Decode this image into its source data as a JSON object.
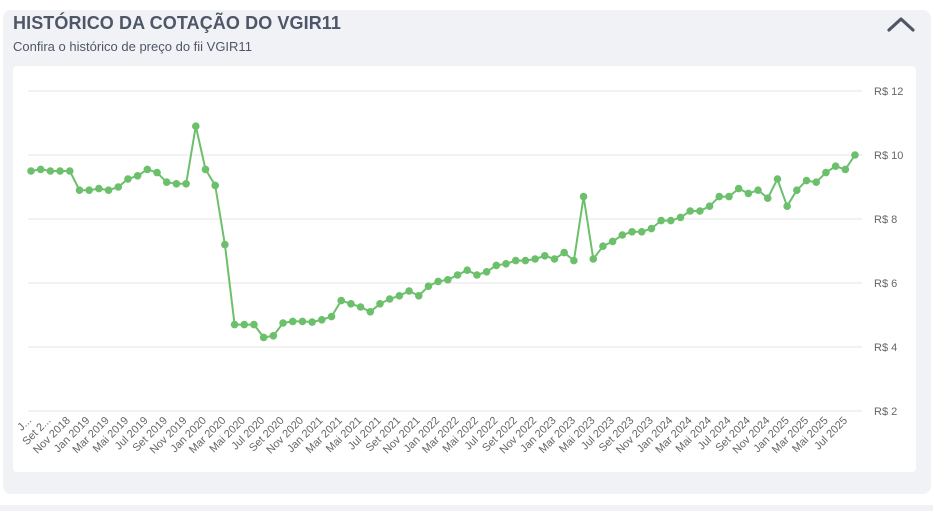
{
  "header": {
    "title": "HISTÓRICO DA COTAÇÃO DO VGIR11",
    "subtitle": "Confira o histórico de preço do fii VGIR11"
  },
  "icons": {
    "collapse": "chevron-up-icon"
  },
  "colors": {
    "line": "#6cc06c",
    "marker": "#6cc06c",
    "grid": "#e6e6e6",
    "text": "#4e5668",
    "card_bg": "#f0f2f6"
  },
  "chart_data": {
    "type": "line",
    "title": "",
    "xlabel": "",
    "ylabel": "",
    "y_axis_position": "right",
    "ylim": [
      2,
      12
    ],
    "yticks": [
      2,
      4,
      6,
      8,
      10,
      12
    ],
    "ytick_labels": [
      "R$ 2",
      "R$ 4",
      "R$ 6",
      "R$ 8",
      "R$ 10",
      "R$ 12"
    ],
    "grid": true,
    "legend": "none",
    "x_tick_labels": [
      "J...",
      "Set 2...",
      "Nov 2018",
      "Jan 2019",
      "Mar 2019",
      "Mai 2019",
      "Jul 2019",
      "Set 2019",
      "Nov 2019",
      "Jan 2020",
      "Mar 2020",
      "Mai 2020",
      "Jul 2020",
      "Set 2020",
      "Nov 2020",
      "Jan 2021",
      "Mar 2021",
      "Mai 2021",
      "Jul 2021",
      "Set 2021",
      "Nov 2021",
      "Jan 2022",
      "Mar 2022",
      "Mai 2022",
      "Jul 2022",
      "Set 2022",
      "Nov 2022",
      "Jan 2023",
      "Mar 2023",
      "Mai 2023",
      "Jul 2023",
      "Set 2023",
      "Nov 2023",
      "Jan 2024",
      "Mar 2024",
      "Mai 2024",
      "Jul 2024",
      "Set 2024",
      "Nov 2024",
      "Jan 2025",
      "Mar 2025",
      "Mai 2025",
      "Jul 2025"
    ],
    "series": [
      {
        "values": [
          9.5,
          9.55,
          9.5,
          9.5,
          9.5,
          8.9,
          8.9,
          8.95,
          8.9,
          9.0,
          9.25,
          9.35,
          9.55,
          9.45,
          9.15,
          9.1,
          9.1,
          10.9,
          9.55,
          9.05,
          7.2,
          4.7,
          4.7,
          4.7,
          4.3,
          4.35,
          4.75,
          4.8,
          4.8,
          4.78,
          4.85,
          4.95,
          5.45,
          5.35,
          5.25,
          5.1,
          5.35,
          5.5,
          5.6,
          5.75,
          5.6,
          5.9,
          6.05,
          6.1,
          6.25,
          6.4,
          6.25,
          6.35,
          6.55,
          6.6,
          6.7,
          6.7,
          6.75,
          6.85,
          6.75,
          6.95,
          6.7,
          8.7,
          6.75,
          7.15,
          7.3,
          7.5,
          7.6,
          7.6,
          7.7,
          7.95,
          7.95,
          8.05,
          8.25,
          8.25,
          8.4,
          8.7,
          8.7,
          8.95,
          8.8,
          8.9,
          8.65,
          9.25,
          8.4,
          8.9,
          9.2,
          9.15,
          9.45,
          9.65,
          9.55,
          10.0
        ]
      }
    ]
  }
}
